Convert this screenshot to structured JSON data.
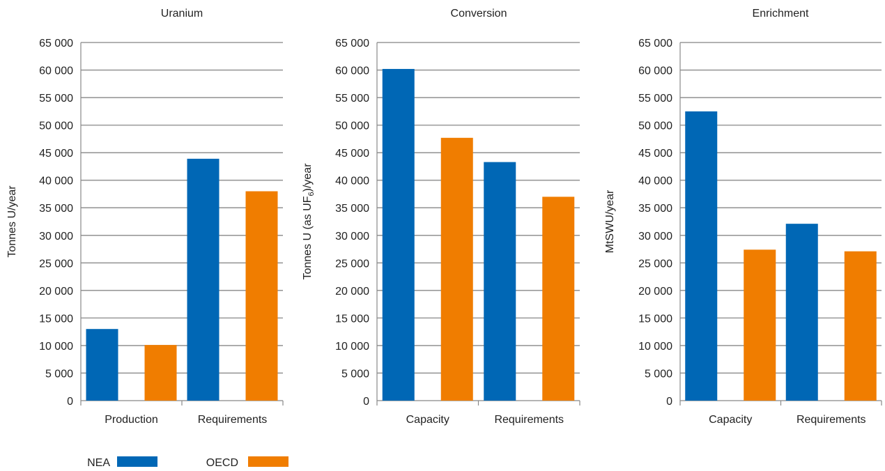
{
  "chart_data": [
    {
      "type": "bar",
      "title": "Uranium",
      "ylabel": "Tonnes U/year",
      "ylim": [
        0,
        65000
      ],
      "yticks": [
        0,
        5000,
        10000,
        15000,
        20000,
        25000,
        30000,
        35000,
        40000,
        45000,
        50000,
        55000,
        60000,
        65000
      ],
      "ytick_labels": [
        "0",
        "5 000",
        "10 000",
        "15 000",
        "20 000",
        "25 000",
        "30 000",
        "35 000",
        "40 000",
        "45 000",
        "50 000",
        "55 000",
        "60 000",
        "65 000"
      ],
      "categories": [
        "Production",
        "Requirements"
      ],
      "series": [
        {
          "name": "NEA",
          "values": [
            13000,
            43900
          ]
        },
        {
          "name": "OECD",
          "values": [
            10100,
            38000
          ]
        }
      ]
    },
    {
      "type": "bar",
      "title": "Conversion",
      "ylabel": "Tonnes U (as UF6)/year",
      "ylabel_parts": {
        "before": "Tonnes U (as UF",
        "sub": "6",
        "after": ")/year"
      },
      "ylim": [
        0,
        65000
      ],
      "yticks": [
        0,
        5000,
        10000,
        15000,
        20000,
        25000,
        30000,
        35000,
        40000,
        45000,
        50000,
        55000,
        60000,
        65000
      ],
      "ytick_labels": [
        "0",
        "5 000",
        "10 000",
        "15 000",
        "20 000",
        "25 000",
        "30 000",
        "35 000",
        "40 000",
        "45 000",
        "50 000",
        "55 000",
        "60 000",
        "65 000"
      ],
      "categories": [
        "Capacity",
        "Requirements"
      ],
      "series": [
        {
          "name": "NEA",
          "values": [
            60200,
            43300
          ]
        },
        {
          "name": "OECD",
          "values": [
            47700,
            37000
          ]
        }
      ]
    },
    {
      "type": "bar",
      "title": "Enrichment",
      "ylabel": "MtSWU/year",
      "ylim": [
        0,
        65000
      ],
      "yticks": [
        0,
        5000,
        10000,
        15000,
        20000,
        25000,
        30000,
        35000,
        40000,
        45000,
        50000,
        55000,
        60000,
        65000
      ],
      "ytick_labels": [
        "0",
        "5 000",
        "10 000",
        "15 000",
        "20 000",
        "25 000",
        "30 000",
        "35 000",
        "40 000",
        "45 000",
        "50 000",
        "55 000",
        "60 000",
        "65 000"
      ],
      "categories": [
        "Capacity",
        "Requirements"
      ],
      "series": [
        {
          "name": "NEA",
          "values": [
            52500,
            32100
          ]
        },
        {
          "name": "OECD",
          "values": [
            27400,
            27100
          ]
        }
      ]
    }
  ],
  "legend": {
    "placement": "bottom-left",
    "items": [
      {
        "label": "NEA",
        "color": "#0067b5"
      },
      {
        "label": "OECD",
        "color": "#f07d00"
      }
    ]
  },
  "colors": {
    "NEA": "#0067b5",
    "OECD": "#f07d00",
    "grid": "#999999",
    "axis": "#888888"
  },
  "grid": true
}
